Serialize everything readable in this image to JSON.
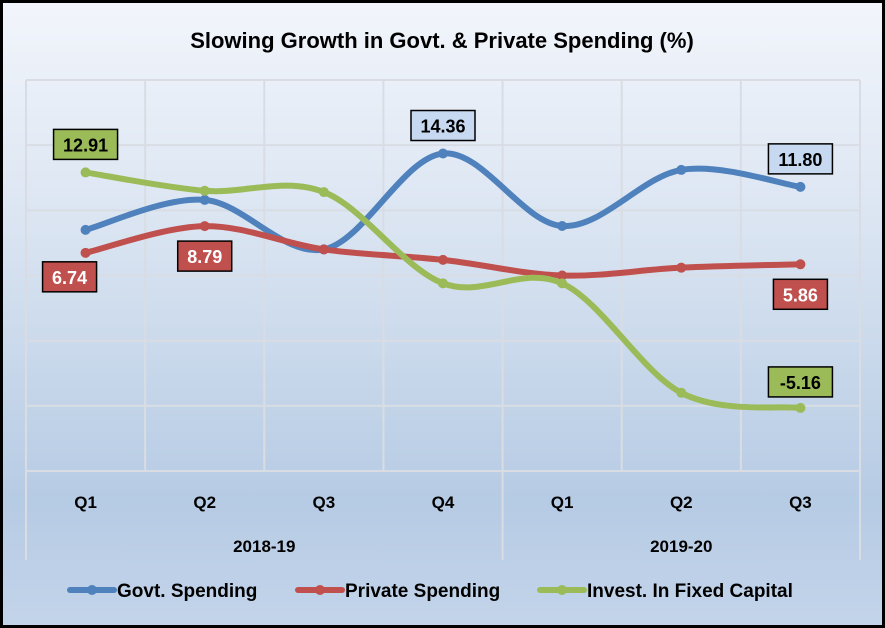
{
  "chart_data": {
    "type": "line",
    "title": "Slowing Growth in Govt. & Private Spending (%)",
    "categories": [
      "Q1",
      "Q2",
      "Q3",
      "Q4",
      "Q1",
      "Q2",
      "Q3"
    ],
    "groups": [
      {
        "label": "2018-19",
        "span": 4
      },
      {
        "label": "2019-20",
        "span": 3
      }
    ],
    "ylim": [
      -10,
      20
    ],
    "y_grid_step": 5,
    "y_axis_labels_shown": false,
    "grid": true,
    "smooth": true,
    "legend": "bottom",
    "series": [
      {
        "name": "Govt. Spending",
        "color": "#4f81bd",
        "label_bg": "#c6d9f1",
        "values": [
          8.5,
          10.8,
          7.0,
          14.36,
          8.8,
          13.1,
          11.8
        ],
        "labels": {
          "3": "14.36",
          "6": "11.80"
        }
      },
      {
        "name": "Private Spending",
        "color": "#c0504d",
        "label_bg": "#c0504d",
        "values": [
          6.74,
          8.79,
          7.0,
          6.2,
          5.0,
          5.6,
          5.86
        ],
        "labels": {
          "0": "6.74",
          "1": "8.79",
          "6": "5.86"
        }
      },
      {
        "name": "Invest. In Fixed Capital",
        "color": "#9bbb59",
        "label_bg": "#9bbb59",
        "values": [
          12.91,
          11.5,
          11.4,
          4.4,
          4.4,
          -4.0,
          -5.16
        ],
        "labels": {
          "0": "12.91",
          "6": "-5.16"
        }
      }
    ]
  }
}
